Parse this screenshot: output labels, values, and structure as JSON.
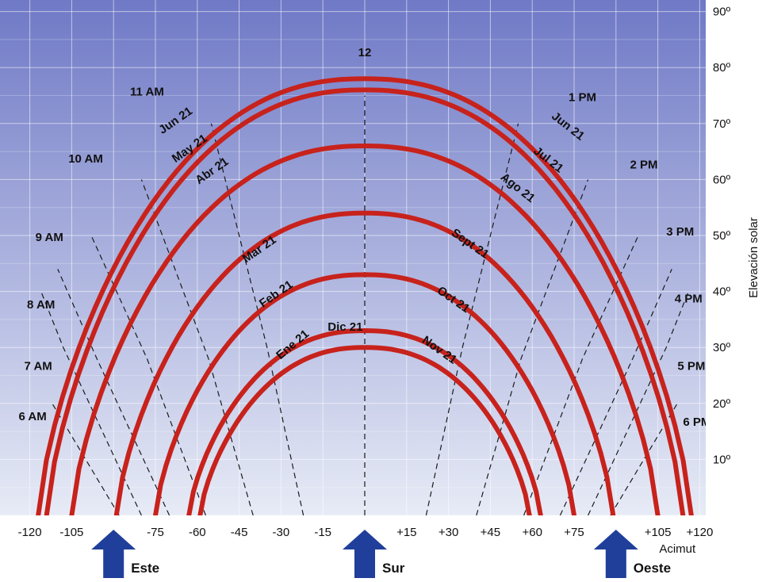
{
  "chart_data": {
    "type": "line",
    "ylabel": "Elevación solar",
    "xlabel": "Acimut",
    "xlim": [
      -120,
      120
    ],
    "ylim": [
      0,
      90
    ],
    "x_ticks": [
      "-120",
      "-105",
      "-75",
      "-60",
      "-45",
      "-30",
      "-15",
      "+15",
      "+30",
      "+45",
      "+60",
      "+75",
      "+105",
      "+120"
    ],
    "y_ticks": [
      "10º",
      "20º",
      "30º",
      "40º",
      "50º",
      "60º",
      "70º",
      "80º",
      "90º"
    ],
    "grid": true,
    "series": [
      {
        "name": "Jun 21",
        "azimuth_range": [
          -117,
          117
        ],
        "noon_elevation": 78
      },
      {
        "name": "May 21",
        "azimuth_range": [
          -114,
          114
        ],
        "noon_elevation": 76
      },
      {
        "name": "Abr 21",
        "azimuth_range": [
          -105,
          105
        ],
        "noon_elevation": 66
      },
      {
        "name": "Mar 21",
        "azimuth_range": [
          -89,
          89
        ],
        "noon_elevation": 54
      },
      {
        "name": "Feb 21",
        "azimuth_range": [
          -75,
          75
        ],
        "noon_elevation": 43
      },
      {
        "name": "Ene 21",
        "azimuth_range": [
          -63,
          63
        ],
        "noon_elevation": 33
      },
      {
        "name": "Dic 21",
        "azimuth_range": [
          -59,
          59
        ],
        "noon_elevation": 30
      }
    ],
    "hour_labels": [
      "6 AM",
      "7 AM",
      "8 AM",
      "9 AM",
      "10 AM",
      "11 AM",
      "12",
      "1 PM",
      "2 PM",
      "3 PM",
      "4 PM",
      "5 PM",
      "6 PM"
    ],
    "month_labels_right": [
      "Jun 21",
      "Jul 21",
      "Ago 21",
      "Sept 21",
      "Oct 21",
      "Nov 21"
    ],
    "directions": [
      {
        "label": "Este",
        "azimuth": -90
      },
      {
        "label": "Sur",
        "azimuth": 0
      },
      {
        "label": "Oeste",
        "azimuth": 90
      }
    ]
  },
  "colors": {
    "sky_top": "#6f79c6",
    "sky_bottom": "#e7ebf6",
    "curve": "#c7221c",
    "arrow": "#1f3f9b"
  }
}
